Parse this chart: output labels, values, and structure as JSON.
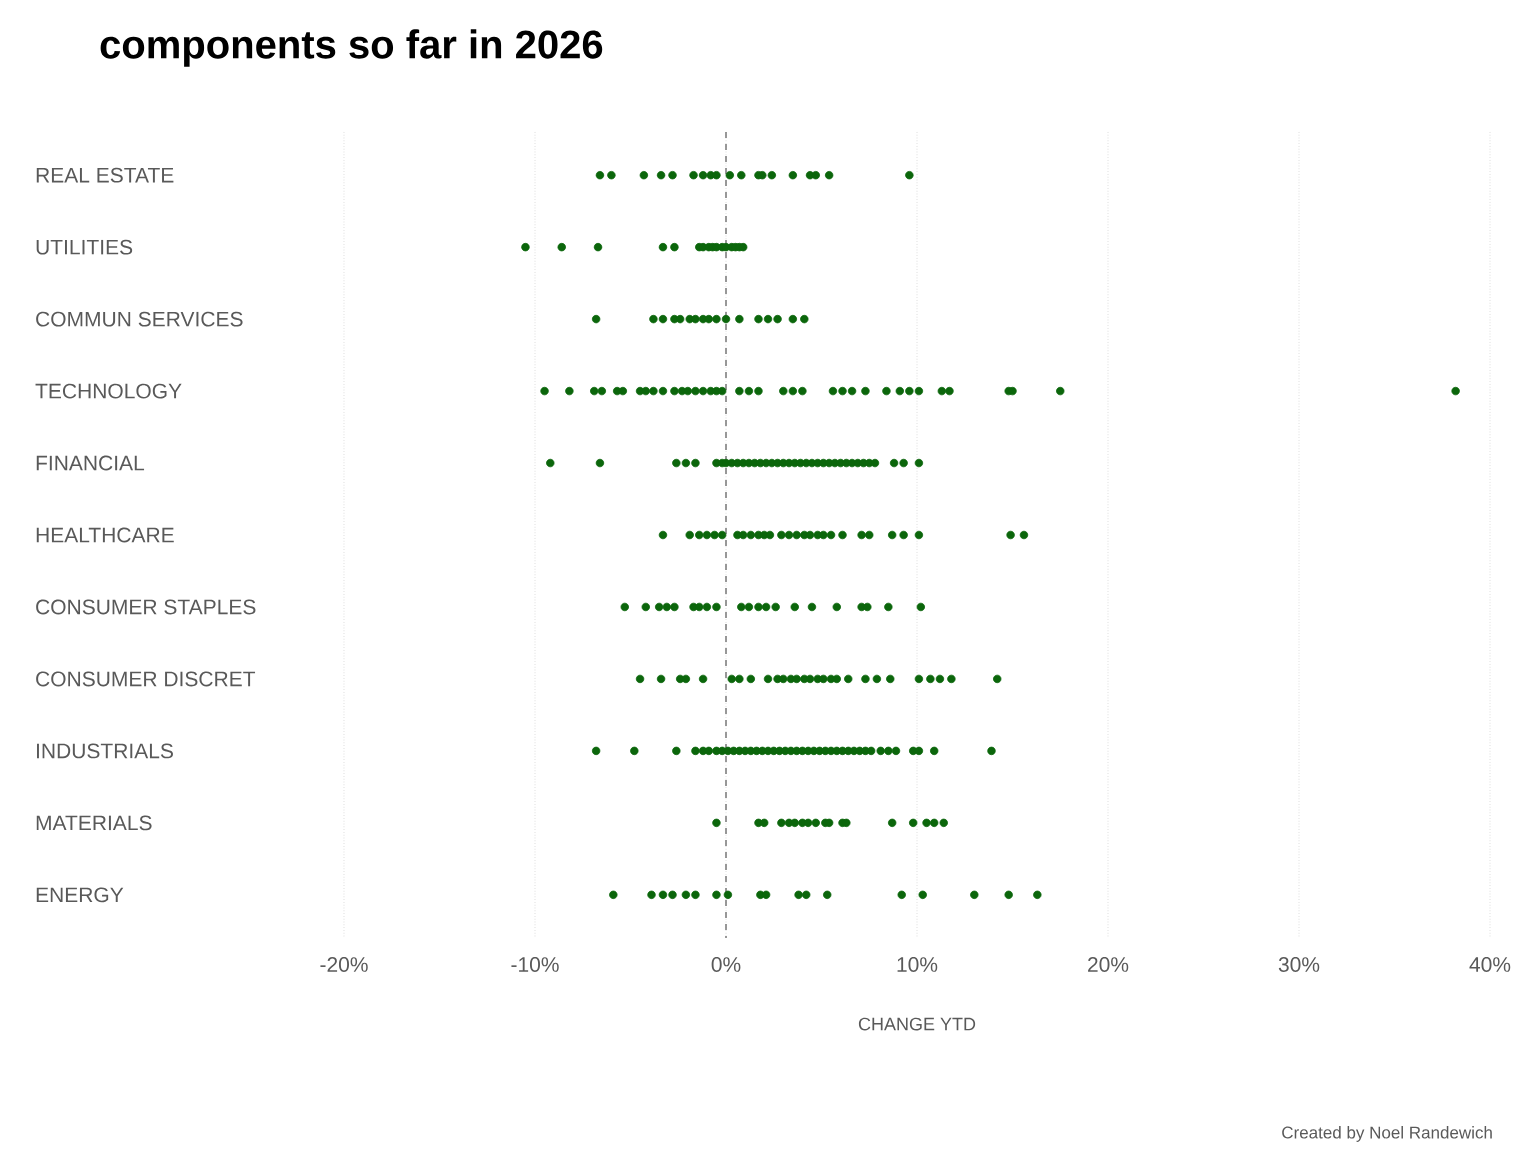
{
  "chart_data": {
    "type": "scatter",
    "orientation": "horizontal",
    "title": "components so far in 2026",
    "xlabel": "CHANGE YTD",
    "annotations": [
      "Created by Noel Randewich"
    ],
    "categories": [
      "REAL ESTATE",
      "UTILITIES",
      "COMMUN SERVICES",
      "TECHNOLOGY",
      "FINANCIAL",
      "HEALTHCARE",
      "CONSUMER STAPLES",
      "CONSUMER DISCRET",
      "INDUSTRIALS",
      "MATERIALS",
      "ENERGY"
    ],
    "xlim": [
      -20,
      40
    ],
    "xticks": [
      {
        "value": -20,
        "label": "-20%"
      },
      {
        "value": -10,
        "label": "-10%"
      },
      {
        "value": 0,
        "label": "0%"
      },
      {
        "value": 10,
        "label": "10%"
      },
      {
        "value": 20,
        "label": "20%"
      },
      {
        "value": 30,
        "label": "30%"
      },
      {
        "value": 40,
        "label": "40%"
      }
    ],
    "grid": "x",
    "marker": "circle",
    "ref_lines": [
      {
        "axis": "x",
        "value": 0,
        "color": "#808080",
        "line_style": "dashed"
      }
    ],
    "series": [
      {
        "color": "#0b660b",
        "x": [
          "REAL ESTATE",
          "REAL ESTATE",
          "REAL ESTATE",
          "REAL ESTATE",
          "REAL ESTATE",
          "REAL ESTATE",
          "REAL ESTATE",
          "REAL ESTATE",
          "REAL ESTATE",
          "REAL ESTATE",
          "REAL ESTATE",
          "REAL ESTATE",
          "REAL ESTATE",
          "REAL ESTATE",
          "REAL ESTATE",
          "REAL ESTATE",
          "REAL ESTATE",
          "REAL ESTATE",
          "REAL ESTATE"
        ],
        "values": [
          -6.6,
          -6.0,
          -4.3,
          -3.4,
          -2.8,
          -1.7,
          -1.2,
          -0.8,
          -0.5,
          0.2,
          0.8,
          1.7,
          1.9,
          2.4,
          3.5,
          4.4,
          4.7,
          5.4,
          9.6
        ]
      },
      {
        "color": "#0b660b",
        "x": [
          "UTILITIES",
          "UTILITIES",
          "UTILITIES",
          "UTILITIES",
          "UTILITIES",
          "UTILITIES",
          "UTILITIES",
          "UTILITIES",
          "UTILITIES",
          "UTILITIES",
          "UTILITIES",
          "UTILITIES",
          "UTILITIES",
          "UTILITIES",
          "UTILITIES",
          "UTILITIES"
        ],
        "values": [
          -10.5,
          -8.6,
          -6.7,
          -3.3,
          -2.7,
          -1.4,
          -1.2,
          -0.9,
          -0.7,
          -0.5,
          -0.2,
          0,
          0.3,
          0.5,
          0.7,
          0.9
        ]
      },
      {
        "color": "#0b660b",
        "x": [
          "COMMUN SERVICES",
          "COMMUN SERVICES",
          "COMMUN SERVICES",
          "COMMUN SERVICES",
          "COMMUN SERVICES",
          "COMMUN SERVICES",
          "COMMUN SERVICES",
          "COMMUN SERVICES",
          "COMMUN SERVICES",
          "COMMUN SERVICES",
          "COMMUN SERVICES",
          "COMMUN SERVICES",
          "COMMUN SERVICES",
          "COMMUN SERVICES",
          "COMMUN SERVICES",
          "COMMUN SERVICES",
          "COMMUN SERVICES"
        ],
        "values": [
          -6.8,
          -3.8,
          -3.3,
          -2.7,
          -2.4,
          -1.9,
          -1.6,
          -1.2,
          -0.9,
          -0.5,
          0,
          0.7,
          1.7,
          2.2,
          2.7,
          3.5,
          4.1
        ]
      },
      {
        "color": "#0b660b",
        "x": [
          "TECHNOLOGY",
          "TECHNOLOGY",
          "TECHNOLOGY",
          "TECHNOLOGY",
          "TECHNOLOGY",
          "TECHNOLOGY",
          "TECHNOLOGY",
          "TECHNOLOGY",
          "TECHNOLOGY",
          "TECHNOLOGY",
          "TECHNOLOGY",
          "TECHNOLOGY",
          "TECHNOLOGY",
          "TECHNOLOGY",
          "TECHNOLOGY",
          "TECHNOLOGY",
          "TECHNOLOGY",
          "TECHNOLOGY",
          "TECHNOLOGY",
          "TECHNOLOGY",
          "TECHNOLOGY",
          "TECHNOLOGY",
          "TECHNOLOGY",
          "TECHNOLOGY",
          "TECHNOLOGY",
          "TECHNOLOGY",
          "TECHNOLOGY",
          "TECHNOLOGY",
          "TECHNOLOGY",
          "TECHNOLOGY",
          "TECHNOLOGY",
          "TECHNOLOGY",
          "TECHNOLOGY",
          "TECHNOLOGY",
          "TECHNOLOGY",
          "TECHNOLOGY",
          "TECHNOLOGY",
          "TECHNOLOGY"
        ],
        "values": [
          -9.5,
          -8.2,
          -6.9,
          -6.5,
          -5.7,
          -5.4,
          -4.5,
          -4.2,
          -3.8,
          -3.3,
          -2.7,
          -2.3,
          -2.0,
          -1.6,
          -1.2,
          -0.8,
          -0.5,
          -0.2,
          0.7,
          1.2,
          1.7,
          3.0,
          3.5,
          4.0,
          5.6,
          6.1,
          6.6,
          7.3,
          8.4,
          9.1,
          9.6,
          10.1,
          11.3,
          11.7,
          14.8,
          15.0,
          17.5,
          38.2
        ]
      },
      {
        "color": "#0b660b",
        "x": [
          "FINANCIAL",
          "FINANCIAL",
          "FINANCIAL",
          "FINANCIAL",
          "FINANCIAL",
          "FINANCIAL",
          "FINANCIAL",
          "FINANCIAL",
          "FINANCIAL",
          "FINANCIAL",
          "FINANCIAL",
          "FINANCIAL",
          "FINANCIAL",
          "FINANCIAL",
          "FINANCIAL",
          "FINANCIAL",
          "FINANCIAL",
          "FINANCIAL",
          "FINANCIAL",
          "FINANCIAL",
          "FINANCIAL",
          "FINANCIAL",
          "FINANCIAL",
          "FINANCIAL",
          "FINANCIAL",
          "FINANCIAL",
          "FINANCIAL",
          "FINANCIAL",
          "FINANCIAL",
          "FINANCIAL",
          "FINANCIAL",
          "FINANCIAL",
          "FINANCIAL",
          "FINANCIAL",
          "FINANCIAL",
          "FINANCIAL",
          "FINANCIAL"
        ],
        "values": [
          -9.2,
          -6.6,
          -2.6,
          -2.1,
          -1.6,
          -0.5,
          -0.2,
          0.0,
          0.3,
          0.6,
          0.9,
          1.2,
          1.5,
          1.8,
          2.1,
          2.4,
          2.7,
          3.0,
          3.3,
          3.6,
          3.9,
          4.2,
          4.5,
          4.8,
          5.1,
          5.4,
          5.7,
          6.0,
          6.3,
          6.6,
          6.9,
          7.2,
          7.5,
          7.8,
          8.8,
          9.3,
          10.1
        ]
      },
      {
        "color": "#0b660b",
        "x": [
          "HEALTHCARE",
          "HEALTHCARE",
          "HEALTHCARE",
          "HEALTHCARE",
          "HEALTHCARE",
          "HEALTHCARE",
          "HEALTHCARE",
          "HEALTHCARE",
          "HEALTHCARE",
          "HEALTHCARE",
          "HEALTHCARE",
          "HEALTHCARE",
          "HEALTHCARE",
          "HEALTHCARE",
          "HEALTHCARE",
          "HEALTHCARE",
          "HEALTHCARE",
          "HEALTHCARE",
          "HEALTHCARE",
          "HEALTHCARE",
          "HEALTHCARE",
          "HEALTHCARE",
          "HEALTHCARE",
          "HEALTHCARE",
          "HEALTHCARE",
          "HEALTHCARE",
          "HEALTHCARE",
          "HEALTHCARE"
        ],
        "values": [
          -3.3,
          -1.9,
          -1.4,
          -1.0,
          -0.6,
          -0.2,
          0.6,
          0.9,
          1.3,
          1.7,
          2.0,
          2.3,
          2.9,
          3.3,
          3.7,
          4.1,
          4.4,
          4.8,
          5.1,
          5.5,
          6.1,
          7.1,
          7.5,
          8.7,
          9.3,
          10.1,
          14.9,
          15.6
        ]
      },
      {
        "color": "#0b660b",
        "x": [
          "CONSUMER STAPLES",
          "CONSUMER STAPLES",
          "CONSUMER STAPLES",
          "CONSUMER STAPLES",
          "CONSUMER STAPLES",
          "CONSUMER STAPLES",
          "CONSUMER STAPLES",
          "CONSUMER STAPLES",
          "CONSUMER STAPLES",
          "CONSUMER STAPLES",
          "CONSUMER STAPLES",
          "CONSUMER STAPLES",
          "CONSUMER STAPLES",
          "CONSUMER STAPLES",
          "CONSUMER STAPLES",
          "CONSUMER STAPLES",
          "CONSUMER STAPLES",
          "CONSUMER STAPLES",
          "CONSUMER STAPLES",
          "CONSUMER STAPLES",
          "CONSUMER STAPLES"
        ],
        "values": [
          -5.3,
          -4.2,
          -3.5,
          -3.1,
          -2.7,
          -1.7,
          -1.4,
          -1.0,
          -0.5,
          0.8,
          1.2,
          1.7,
          2.1,
          2.6,
          3.6,
          4.5,
          5.8,
          7.1,
          7.4,
          8.5,
          10.2
        ]
      },
      {
        "color": "#0b660b",
        "x": [
          "CONSUMER DISCRET",
          "CONSUMER DISCRET",
          "CONSUMER DISCRET",
          "CONSUMER DISCRET",
          "CONSUMER DISCRET",
          "CONSUMER DISCRET",
          "CONSUMER DISCRET",
          "CONSUMER DISCRET",
          "CONSUMER DISCRET",
          "CONSUMER DISCRET",
          "CONSUMER DISCRET",
          "CONSUMER DISCRET",
          "CONSUMER DISCRET",
          "CONSUMER DISCRET",
          "CONSUMER DISCRET",
          "CONSUMER DISCRET",
          "CONSUMER DISCRET",
          "CONSUMER DISCRET",
          "CONSUMER DISCRET",
          "CONSUMER DISCRET",
          "CONSUMER DISCRET",
          "CONSUMER DISCRET",
          "CONSUMER DISCRET",
          "CONSUMER DISCRET",
          "CONSUMER DISCRET",
          "CONSUMER DISCRET",
          "CONSUMER DISCRET",
          "CONSUMER DISCRET"
        ],
        "values": [
          -4.5,
          -3.4,
          -2.4,
          -2.1,
          -1.2,
          0.3,
          0.7,
          1.3,
          2.2,
          2.7,
          3.0,
          3.4,
          3.7,
          4.1,
          4.4,
          4.8,
          5.1,
          5.5,
          5.8,
          6.4,
          7.3,
          7.9,
          8.6,
          10.1,
          10.7,
          11.2,
          11.8,
          14.2
        ]
      },
      {
        "color": "#0b660b",
        "x": [
          "INDUSTRIALS",
          "INDUSTRIALS",
          "INDUSTRIALS",
          "INDUSTRIALS",
          "INDUSTRIALS",
          "INDUSTRIALS",
          "INDUSTRIALS",
          "INDUSTRIALS",
          "INDUSTRIALS",
          "INDUSTRIALS",
          "INDUSTRIALS",
          "INDUSTRIALS",
          "INDUSTRIALS",
          "INDUSTRIALS",
          "INDUSTRIALS",
          "INDUSTRIALS",
          "INDUSTRIALS",
          "INDUSTRIALS",
          "INDUSTRIALS",
          "INDUSTRIALS",
          "INDUSTRIALS",
          "INDUSTRIALS",
          "INDUSTRIALS",
          "INDUSTRIALS",
          "INDUSTRIALS",
          "INDUSTRIALS",
          "INDUSTRIALS",
          "INDUSTRIALS",
          "INDUSTRIALS",
          "INDUSTRIALS",
          "INDUSTRIALS",
          "INDUSTRIALS",
          "INDUSTRIALS",
          "INDUSTRIALS",
          "INDUSTRIALS",
          "INDUSTRIALS",
          "INDUSTRIALS",
          "INDUSTRIALS",
          "INDUSTRIALS",
          "INDUSTRIALS",
          "INDUSTRIALS"
        ],
        "values": [
          -6.8,
          -4.8,
          -2.6,
          -1.6,
          -1.2,
          -0.9,
          -0.5,
          -0.2,
          0.1,
          0.4,
          0.7,
          1.0,
          1.3,
          1.6,
          1.9,
          2.2,
          2.5,
          2.8,
          3.1,
          3.4,
          3.7,
          4.0,
          4.3,
          4.6,
          4.9,
          5.2,
          5.5,
          5.8,
          6.1,
          6.4,
          6.7,
          7.0,
          7.3,
          7.6,
          8.1,
          8.5,
          8.9,
          9.8,
          10.1,
          10.9,
          13.9
        ]
      },
      {
        "color": "#0b660b",
        "x": [
          "MATERIALS",
          "MATERIALS",
          "MATERIALS",
          "MATERIALS",
          "MATERIALS",
          "MATERIALS",
          "MATERIALS",
          "MATERIALS",
          "MATERIALS",
          "MATERIALS",
          "MATERIALS",
          "MATERIALS",
          "MATERIALS",
          "MATERIALS",
          "MATERIALS",
          "MATERIALS",
          "MATERIALS",
          "MATERIALS"
        ],
        "values": [
          -0.5,
          1.7,
          2.0,
          2.9,
          3.3,
          3.6,
          4.0,
          4.3,
          4.7,
          5.2,
          5.4,
          6.1,
          6.3,
          8.7,
          9.8,
          10.5,
          10.9,
          11.4
        ]
      },
      {
        "color": "#0b660b",
        "x": [
          "ENERGY",
          "ENERGY",
          "ENERGY",
          "ENERGY",
          "ENERGY",
          "ENERGY",
          "ENERGY",
          "ENERGY",
          "ENERGY",
          "ENERGY",
          "ENERGY",
          "ENERGY",
          "ENERGY",
          "ENERGY",
          "ENERGY",
          "ENERGY",
          "ENERGY",
          "ENERGY"
        ],
        "values": [
          -5.9,
          -3.9,
          -3.3,
          -2.8,
          -2.1,
          -1.6,
          -0.5,
          0.1,
          1.8,
          2.1,
          3.8,
          4.2,
          5.3,
          9.2,
          10.3,
          13.0,
          14.8,
          16.3
        ]
      }
    ]
  }
}
